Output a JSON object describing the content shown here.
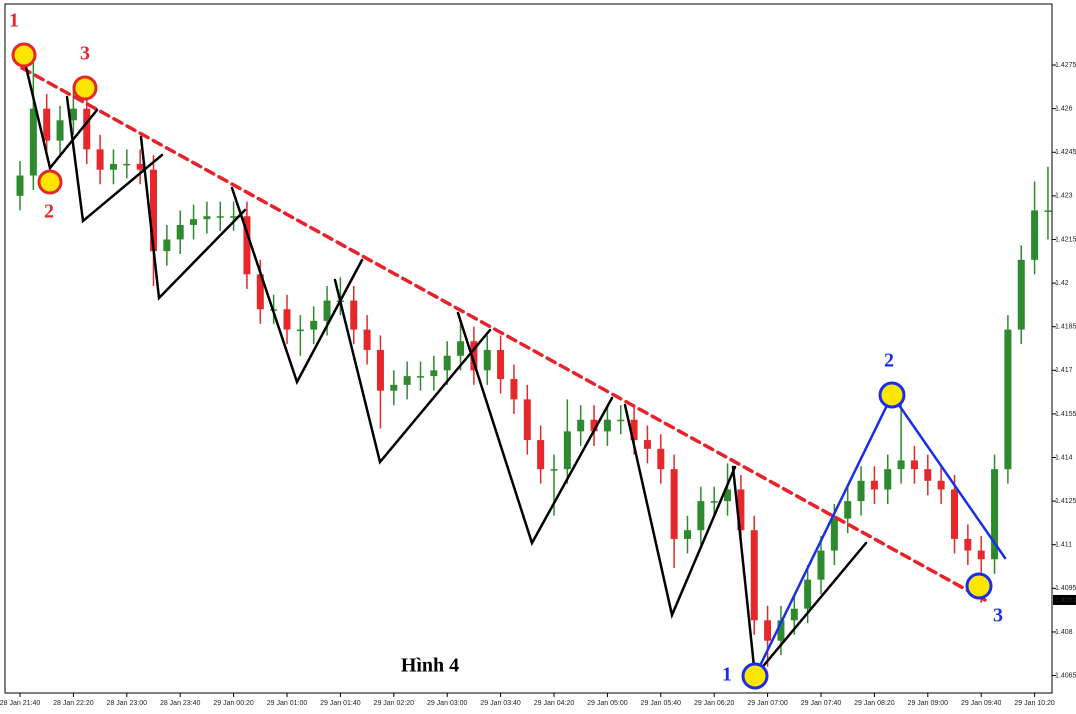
{
  "chart_data": {
    "type": "candlestick",
    "caption": "Hình 4",
    "categories": [
      "28 Jan 21:40",
      null,
      null,
      null,
      "28 Jan 22:20",
      null,
      null,
      null,
      "28 Jan 23:00",
      null,
      null,
      null,
      "28 Jan 23:40",
      null,
      null,
      null,
      "29 Jan 00:20",
      null,
      null,
      null,
      "29 Jan 01:00",
      null,
      null,
      null,
      "29 Jan 01:40",
      null,
      null,
      null,
      "29 Jan 02:20",
      null,
      null,
      null,
      "29 Jan 03:00",
      null,
      null,
      null,
      "29 Jan 03:40",
      null,
      null,
      null,
      "29 Jan 04:20",
      null,
      null,
      null,
      "29 Jan 05:00",
      null,
      null,
      null,
      "29 Jan 05:40",
      null,
      null,
      null,
      "29 Jan 06:20",
      null,
      null,
      null,
      "29 Jan 07:00",
      null,
      null,
      null,
      "29 Jan 07:40",
      null,
      null,
      null,
      "29 Jan 08:20",
      null,
      null,
      null,
      "29 Jan 09:00",
      null,
      null,
      null,
      "29 Jan 09:40",
      null,
      null,
      null,
      "29 Jan 10:20",
      null
    ],
    "open": [
      1.423,
      1.4237,
      1.426,
      1.4249,
      1.4256,
      1.426,
      1.4246,
      1.4239,
      1.4241,
      1.4241,
      1.4239,
      1.4211,
      1.4215,
      1.422,
      1.4222,
      1.4223,
      1.4223,
      1.4223,
      1.4203,
      1.4191,
      1.4191,
      1.4184,
      1.4184,
      1.4187,
      1.4194,
      1.4194,
      1.4184,
      1.4177,
      1.4163,
      1.4165,
      1.4168,
      1.4168,
      1.417,
      1.4175,
      1.418,
      1.417,
      1.4177,
      1.4167,
      1.416,
      1.4146,
      1.4136,
      1.4136,
      1.4149,
      1.4153,
      1.4149,
      1.4153,
      1.4153,
      1.4146,
      1.4143,
      1.4136,
      1.4112,
      1.4115,
      1.4125,
      1.4125,
      1.4129,
      1.4115,
      1.4084,
      1.4077,
      1.4084,
      1.4088,
      1.4098,
      1.4108,
      1.4119,
      1.4125,
      1.4132,
      1.4129,
      1.4136,
      1.4139,
      1.4136,
      1.4132,
      1.4129,
      1.4112,
      1.4108,
      1.4105,
      1.4136,
      1.4184,
      1.4208,
      1.4225
    ],
    "high": [
      1.4242,
      1.4278,
      1.4265,
      1.4261,
      1.4268,
      1.4265,
      1.4251,
      1.4246,
      1.4246,
      1.4246,
      1.4244,
      1.422,
      1.4225,
      1.4227,
      1.4228,
      1.4228,
      1.4228,
      1.4228,
      1.4208,
      1.4196,
      1.4196,
      1.4189,
      1.4192,
      1.4199,
      1.4202,
      1.4199,
      1.4189,
      1.4182,
      1.417,
      1.4173,
      1.4173,
      1.4175,
      1.418,
      1.4187,
      1.4185,
      1.4182,
      1.4182,
      1.4172,
      1.4165,
      1.4151,
      1.4141,
      1.416,
      1.4158,
      1.4158,
      1.4158,
      1.4158,
      1.4158,
      1.4151,
      1.4148,
      1.4141,
      1.412,
      1.413,
      1.413,
      1.4138,
      1.4134,
      1.412,
      1.4089,
      1.4089,
      1.4093,
      1.4103,
      1.4113,
      1.4124,
      1.413,
      1.4137,
      1.4137,
      1.4141,
      1.416,
      1.4144,
      1.4141,
      1.4137,
      1.4134,
      1.4117,
      1.4113,
      1.4141,
      1.4189,
      1.4213,
      1.4235,
      1.424
    ],
    "low": [
      1.4225,
      1.4232,
      1.4244,
      1.4244,
      1.4251,
      1.4241,
      1.4234,
      1.4234,
      1.4236,
      1.4234,
      1.4199,
      1.4206,
      1.421,
      1.4215,
      1.4217,
      1.4218,
      1.4218,
      1.4198,
      1.4186,
      1.4186,
      1.4179,
      1.4175,
      1.4179,
      1.4182,
      1.4189,
      1.4179,
      1.4172,
      1.415,
      1.4158,
      1.416,
      1.4163,
      1.4163,
      1.4165,
      1.417,
      1.4165,
      1.4165,
      1.4162,
      1.4155,
      1.4141,
      1.4131,
      1.412,
      1.4131,
      1.4144,
      1.4144,
      1.4144,
      1.4148,
      1.4141,
      1.4138,
      1.4131,
      1.4102,
      1.4107,
      1.411,
      1.412,
      1.412,
      1.411,
      1.4079,
      1.4068,
      1.4072,
      1.4079,
      1.4083,
      1.4093,
      1.4103,
      1.4114,
      1.412,
      1.4124,
      1.4124,
      1.4131,
      1.4131,
      1.4127,
      1.4124,
      1.4107,
      1.4103,
      1.409,
      1.41,
      1.4131,
      1.4179,
      1.4203,
      1.4215
    ],
    "close": [
      1.4237,
      1.426,
      1.4249,
      1.4256,
      1.426,
      1.4246,
      1.4239,
      1.4241,
      1.4241,
      1.4239,
      1.4211,
      1.4215,
      1.422,
      1.4222,
      1.4223,
      1.4223,
      1.4223,
      1.4203,
      1.4191,
      1.4191,
      1.4184,
      1.4184,
      1.4187,
      1.4194,
      1.4194,
      1.4184,
      1.4177,
      1.4163,
      1.4165,
      1.4168,
      1.4168,
      1.417,
      1.4175,
      1.418,
      1.417,
      1.4177,
      1.4167,
      1.416,
      1.4146,
      1.4136,
      1.4136,
      1.4149,
      1.4153,
      1.4149,
      1.4153,
      1.4153,
      1.4146,
      1.4143,
      1.4136,
      1.4112,
      1.4115,
      1.4125,
      1.4125,
      1.4129,
      1.4115,
      1.4084,
      1.4077,
      1.4084,
      1.4088,
      1.4098,
      1.4108,
      1.4119,
      1.4125,
      1.4132,
      1.4129,
      1.4136,
      1.4139,
      1.4136,
      1.4132,
      1.4129,
      1.4112,
      1.4108,
      1.4105,
      1.4136,
      1.4184,
      1.4208,
      1.4225,
      1.4225
    ],
    "up_color": "#2f8a2f",
    "down_color": "#e5282c",
    "ylim": [
      1.4059,
      1.4296
    ],
    "yticks": [
      1.4065,
      1.408,
      1.4095,
      1.411,
      1.4125,
      1.414,
      1.4155,
      1.417,
      1.4185,
      1.42,
      1.4215,
      1.423,
      1.4245,
      1.426,
      1.4275
    ],
    "price_marker": 1.4091,
    "red_points": [
      "1",
      "2",
      "3"
    ],
    "blue_points": [
      "1",
      "2",
      "3"
    ]
  }
}
